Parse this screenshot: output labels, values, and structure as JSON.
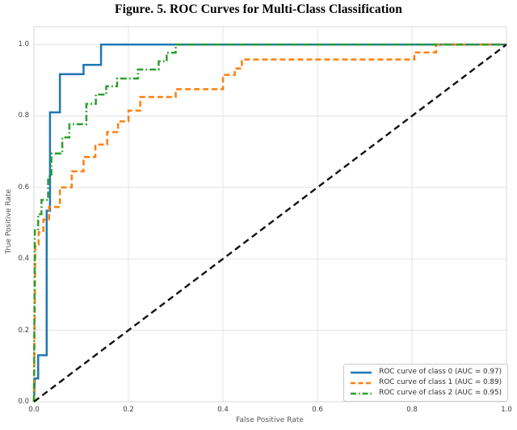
{
  "figure": {
    "title": "Figure. 5. ROC Curves for Multi-Class Classification"
  },
  "chart_data": {
    "type": "line",
    "subtype": "roc-step-curves",
    "title": "Figure. 5. ROC Curves for Multi-Class Classification",
    "xlabel": "False Positive Rate",
    "ylabel": "True Positive Rate",
    "xlim": [
      0.0,
      1.0
    ],
    "ylim": [
      0.0,
      1.05
    ],
    "xticks": [
      "0.0",
      "0.2",
      "0.4",
      "0.6",
      "0.8",
      "1.0"
    ],
    "yticks": [
      "0.0",
      "0.2",
      "0.4",
      "0.6",
      "0.8",
      "1.0"
    ],
    "grid": true,
    "grid_color": "#e3e3e3",
    "spine_color": "#d8d8d8",
    "legend_position": "lower right",
    "series": [
      {
        "name": "ROC curve of class 0 (AUC = 0.97)",
        "class": 0,
        "auc": 0.97,
        "color": "#1f77b4",
        "style": "solid",
        "points": [
          [
            0,
            0
          ],
          [
            0.002,
            0.065
          ],
          [
            0.009,
            0.065
          ],
          [
            0.009,
            0.13
          ],
          [
            0.027,
            0.13
          ],
          [
            0.027,
            0.535
          ],
          [
            0.034,
            0.535
          ],
          [
            0.034,
            0.81
          ],
          [
            0.055,
            0.81
          ],
          [
            0.055,
            0.917
          ],
          [
            0.105,
            0.917
          ],
          [
            0.105,
            0.943
          ],
          [
            0.142,
            0.943
          ],
          [
            0.142,
            1.0
          ],
          [
            1,
            1
          ]
        ]
      },
      {
        "name": "ROC curve of class 1 (AUC = 0.89)",
        "class": 1,
        "auc": 0.89,
        "color": "#ff7f0e",
        "style": "dashed",
        "points": [
          [
            0,
            0
          ],
          [
            0.003,
            0.44
          ],
          [
            0.01,
            0.44
          ],
          [
            0.01,
            0.475
          ],
          [
            0.02,
            0.475
          ],
          [
            0.02,
            0.51
          ],
          [
            0.032,
            0.51
          ],
          [
            0.032,
            0.545
          ],
          [
            0.055,
            0.545
          ],
          [
            0.055,
            0.6
          ],
          [
            0.08,
            0.6
          ],
          [
            0.08,
            0.645
          ],
          [
            0.105,
            0.645
          ],
          [
            0.105,
            0.685
          ],
          [
            0.13,
            0.685
          ],
          [
            0.13,
            0.72
          ],
          [
            0.155,
            0.72
          ],
          [
            0.155,
            0.755
          ],
          [
            0.178,
            0.755
          ],
          [
            0.178,
            0.785
          ],
          [
            0.2,
            0.785
          ],
          [
            0.2,
            0.815
          ],
          [
            0.225,
            0.815
          ],
          [
            0.225,
            0.853
          ],
          [
            0.3,
            0.853
          ],
          [
            0.3,
            0.875
          ],
          [
            0.4,
            0.875
          ],
          [
            0.4,
            0.915
          ],
          [
            0.425,
            0.915
          ],
          [
            0.425,
            0.933
          ],
          [
            0.44,
            0.933
          ],
          [
            0.44,
            0.958
          ],
          [
            0.805,
            0.958
          ],
          [
            0.805,
            0.978
          ],
          [
            0.851,
            0.978
          ],
          [
            0.851,
            1.0
          ],
          [
            1,
            1
          ]
        ]
      },
      {
        "name": "ROC curve of class 2 (AUC = 0.95)",
        "class": 2,
        "auc": 0.95,
        "color": "#2ca02c",
        "style": "dashdot",
        "points": [
          [
            0,
            0
          ],
          [
            0.002,
            0.48
          ],
          [
            0.009,
            0.48
          ],
          [
            0.009,
            0.525
          ],
          [
            0.016,
            0.525
          ],
          [
            0.016,
            0.565
          ],
          [
            0.03,
            0.565
          ],
          [
            0.03,
            0.63
          ],
          [
            0.037,
            0.63
          ],
          [
            0.037,
            0.695
          ],
          [
            0.06,
            0.695
          ],
          [
            0.06,
            0.74
          ],
          [
            0.075,
            0.74
          ],
          [
            0.075,
            0.777
          ],
          [
            0.111,
            0.777
          ],
          [
            0.111,
            0.834
          ],
          [
            0.131,
            0.834
          ],
          [
            0.131,
            0.86
          ],
          [
            0.153,
            0.86
          ],
          [
            0.153,
            0.883
          ],
          [
            0.176,
            0.883
          ],
          [
            0.176,
            0.905
          ],
          [
            0.22,
            0.905
          ],
          [
            0.22,
            0.93
          ],
          [
            0.264,
            0.93
          ],
          [
            0.264,
            0.953
          ],
          [
            0.281,
            0.953
          ],
          [
            0.281,
            0.977
          ],
          [
            0.3,
            0.977
          ],
          [
            0.3,
            1.0
          ],
          [
            1,
            1
          ]
        ]
      }
    ],
    "reference_line": {
      "name": "chance diagonal",
      "color": "#111111",
      "style": "dashed",
      "points": [
        [
          0,
          0
        ],
        [
          1,
          1
        ]
      ]
    }
  }
}
